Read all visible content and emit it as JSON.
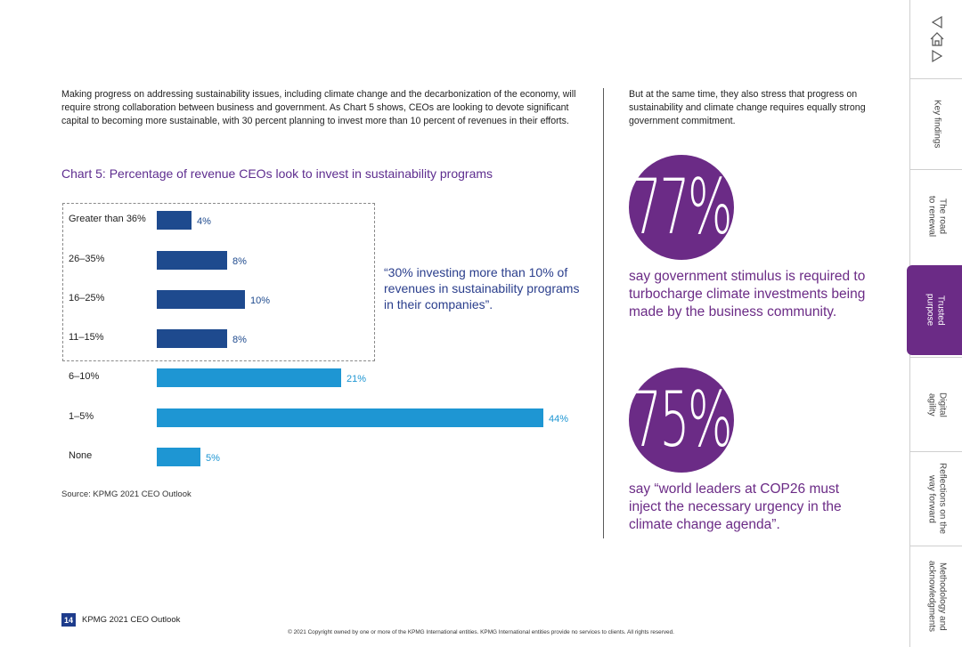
{
  "intro": {
    "left": "Making progress on addressing sustainability issues, including climate change and the decarbonization of the economy, will require strong collaboration between business and government. As Chart 5 shows, CEOs are looking to devote significant capital to becoming more sustainable, with 30 percent planning to invest more than 10 percent of revenues in their efforts.",
    "right": "But at the same time, they also stress that progress on sustainability and climate change requires equally strong government commitment."
  },
  "chart_data": {
    "type": "bar",
    "orientation": "horizontal",
    "title": "Chart 5: Percentage of revenue CEOs look to invest in sustainability programs",
    "categories": [
      "Greater than 36%",
      "26–35%",
      "16–25%",
      "11–15%",
      "6–10%",
      "1–5%",
      "None"
    ],
    "values": [
      4,
      8,
      10,
      8,
      21,
      44,
      5
    ],
    "value_labels": [
      "4%",
      "8%",
      "10%",
      "8%",
      "21%",
      "44%",
      "5%"
    ],
    "highlighted_group": [
      "Greater than 36%",
      "26–35%",
      "16–25%",
      "11–15%"
    ],
    "colors": {
      "highlight": "#1e4a8e",
      "default": "#1e96d3"
    },
    "xlim": [
      0,
      44
    ]
  },
  "quote": "“30% investing more than 10% of revenues in sustainability programs in their companies”.",
  "source": "Source: KPMG 2021 CEO Outlook",
  "stats": [
    {
      "value": "77%",
      "text": "say government stimulus is required to turbocharge climate investments being made by the business community."
    },
    {
      "value": "75%",
      "text": "say “world leaders at COP26 must inject the necessary urgency in the climate change agenda”."
    }
  ],
  "footer": {
    "page_number": "14",
    "label": "KPMG 2021 CEO Outlook",
    "copyright": "© 2021 Copyright owned by one or more of the KPMG International entities. KPMG International entities provide no services to clients. All rights reserved."
  },
  "nav": {
    "icons": [
      "back-triangle-icon",
      "home-icon",
      "forward-triangle-icon"
    ],
    "tabs": [
      {
        "label": "Key findings",
        "active": false
      },
      {
        "label": "The road\nto renewal",
        "active": false
      },
      {
        "label": "Trusted\npurpose",
        "active": true
      },
      {
        "label": "Digital\nagility",
        "active": false
      },
      {
        "label": "Reflections on the\nway forward",
        "active": false
      },
      {
        "label": "Methodology and\nacknowledgments",
        "active": false
      }
    ]
  },
  "colors": {
    "purple": "#6b2b86",
    "title_purple": "#5e2d8f",
    "navy": "#1e3c8c"
  }
}
